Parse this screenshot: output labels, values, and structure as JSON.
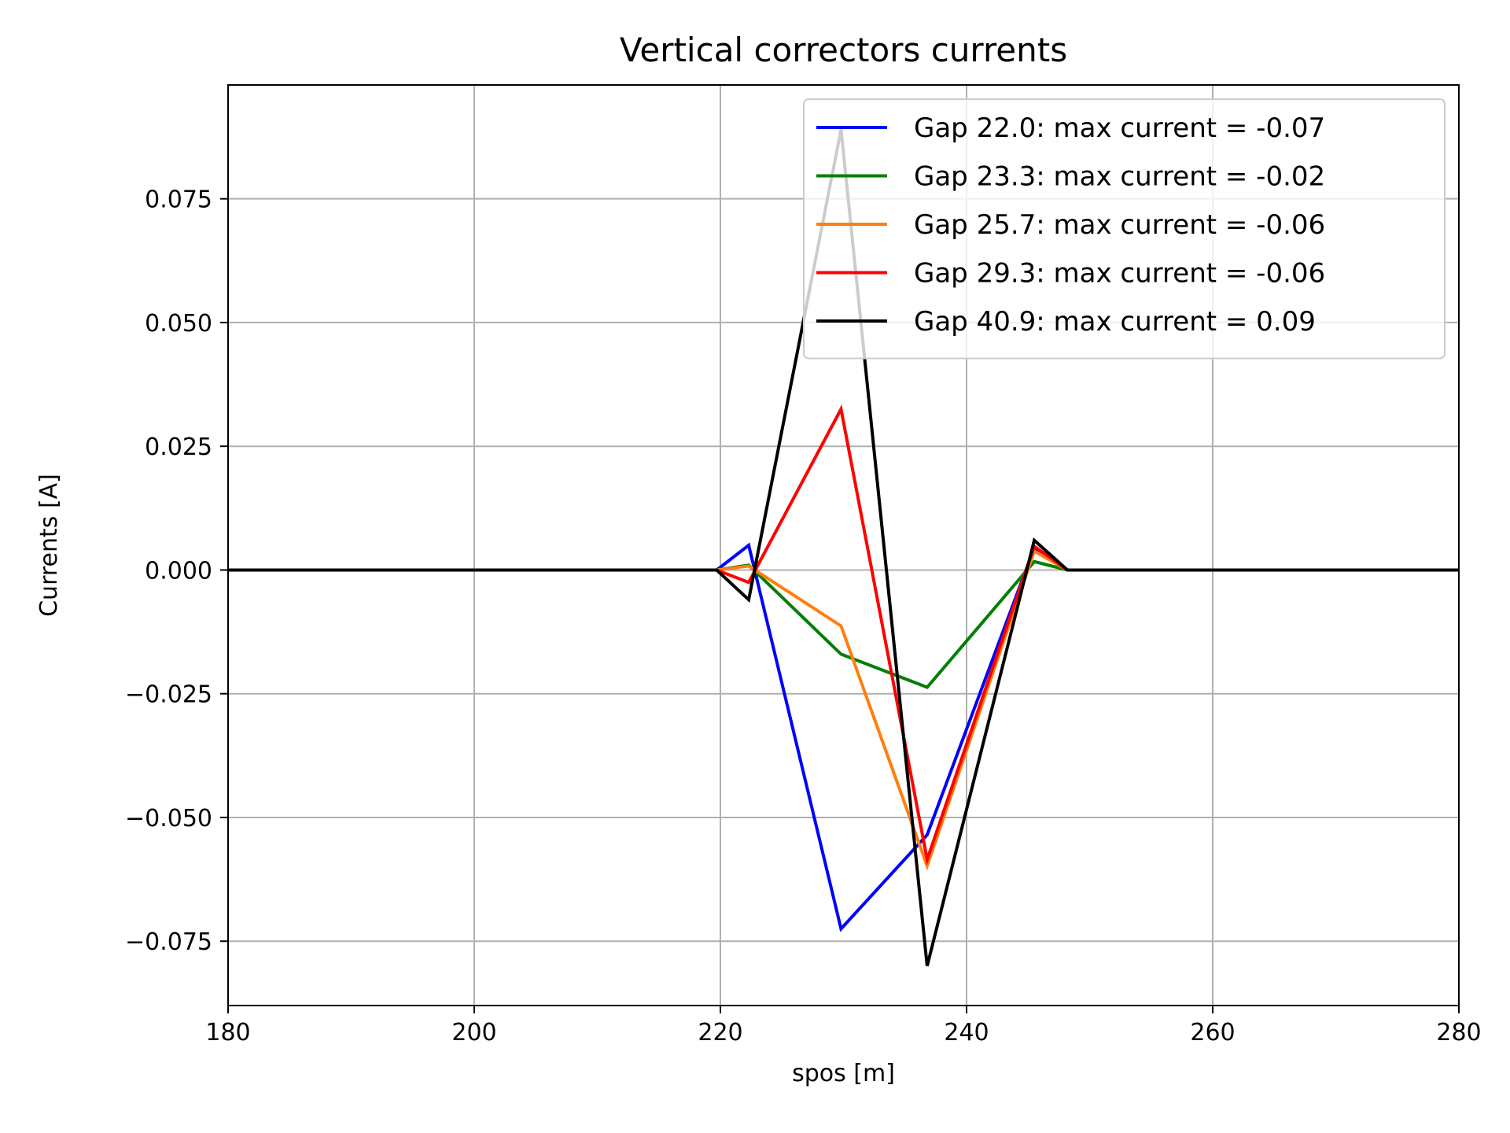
{
  "chart_data": {
    "type": "line",
    "title": "Vertical correctors currents",
    "xlabel": "spos [m]",
    "ylabel": "Currents [A]",
    "xlim": [
      180,
      280
    ],
    "ylim": [
      -0.088,
      0.098
    ],
    "xticks": [
      180,
      200,
      220,
      240,
      260,
      280
    ],
    "xtick_labels": [
      "180",
      "200",
      "220",
      "240",
      "260",
      "280"
    ],
    "yticks": [
      -0.075,
      -0.05,
      -0.025,
      0.0,
      0.025,
      0.05,
      0.075
    ],
    "ytick_labels": [
      "−0.075",
      "−0.050",
      "−0.025",
      "0.000",
      "0.025",
      "0.050",
      "0.075"
    ],
    "grid": true,
    "legend_position": "top-right",
    "series": [
      {
        "name": "Gap 22.0: max current = -0.07",
        "color": "#0000ff",
        "x": [
          180,
          219.7,
          222.3,
          229.8,
          236.8,
          245.5,
          248.2,
          280
        ],
        "y": [
          0,
          0,
          0.005,
          -0.0725,
          -0.0535,
          0.0045,
          0,
          0
        ]
      },
      {
        "name": "Gap 23.3: max current = -0.02",
        "color": "#008000",
        "x": [
          180,
          219.7,
          222.3,
          229.8,
          236.8,
          245.5,
          248.2,
          280
        ],
        "y": [
          0,
          0,
          0.001,
          -0.017,
          -0.0237,
          0.0017,
          0,
          0
        ]
      },
      {
        "name": "Gap 25.7: max current = -0.06",
        "color": "#ff7f0e",
        "x": [
          180,
          219.7,
          222.3,
          229.8,
          236.8,
          245.5,
          248.2,
          280
        ],
        "y": [
          0,
          0,
          0.0008,
          -0.0113,
          -0.0598,
          0.0038,
          0,
          0
        ]
      },
      {
        "name": "Gap 29.3: max current = -0.06",
        "color": "#ff0000",
        "x": [
          180,
          219.7,
          222.3,
          229.8,
          236.8,
          245.5,
          248.2,
          280
        ],
        "y": [
          0,
          0,
          -0.0025,
          0.0325,
          -0.0585,
          0.0048,
          0,
          0
        ]
      },
      {
        "name": "Gap 40.9: max current = 0.09",
        "color": "#000000",
        "x": [
          180,
          219.7,
          222.3,
          229.8,
          236.8,
          245.5,
          248.2,
          280
        ],
        "y": [
          0,
          0,
          -0.006,
          0.089,
          -0.08,
          0.006,
          0,
          0
        ]
      }
    ]
  }
}
